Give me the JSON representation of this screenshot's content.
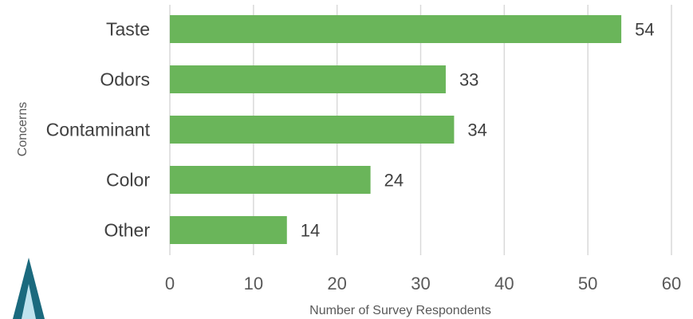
{
  "chart_data": {
    "type": "bar",
    "orientation": "horizontal",
    "categories": [
      "Taste",
      "Odors",
      "Contaminant",
      "Color",
      "Other"
    ],
    "values": [
      54,
      33,
      34,
      24,
      14
    ],
    "xlabel": "Number of Survey Respondents",
    "ylabel": "Concerns",
    "xlim": [
      0,
      60
    ],
    "xticks": [
      0,
      10,
      20,
      30,
      40,
      50,
      60
    ],
    "grid": true,
    "legend": "none",
    "bar_color": "#6ab55a"
  },
  "logo": {
    "color_dark": "#1b6a7e",
    "color_light": "#bfe3ee"
  }
}
